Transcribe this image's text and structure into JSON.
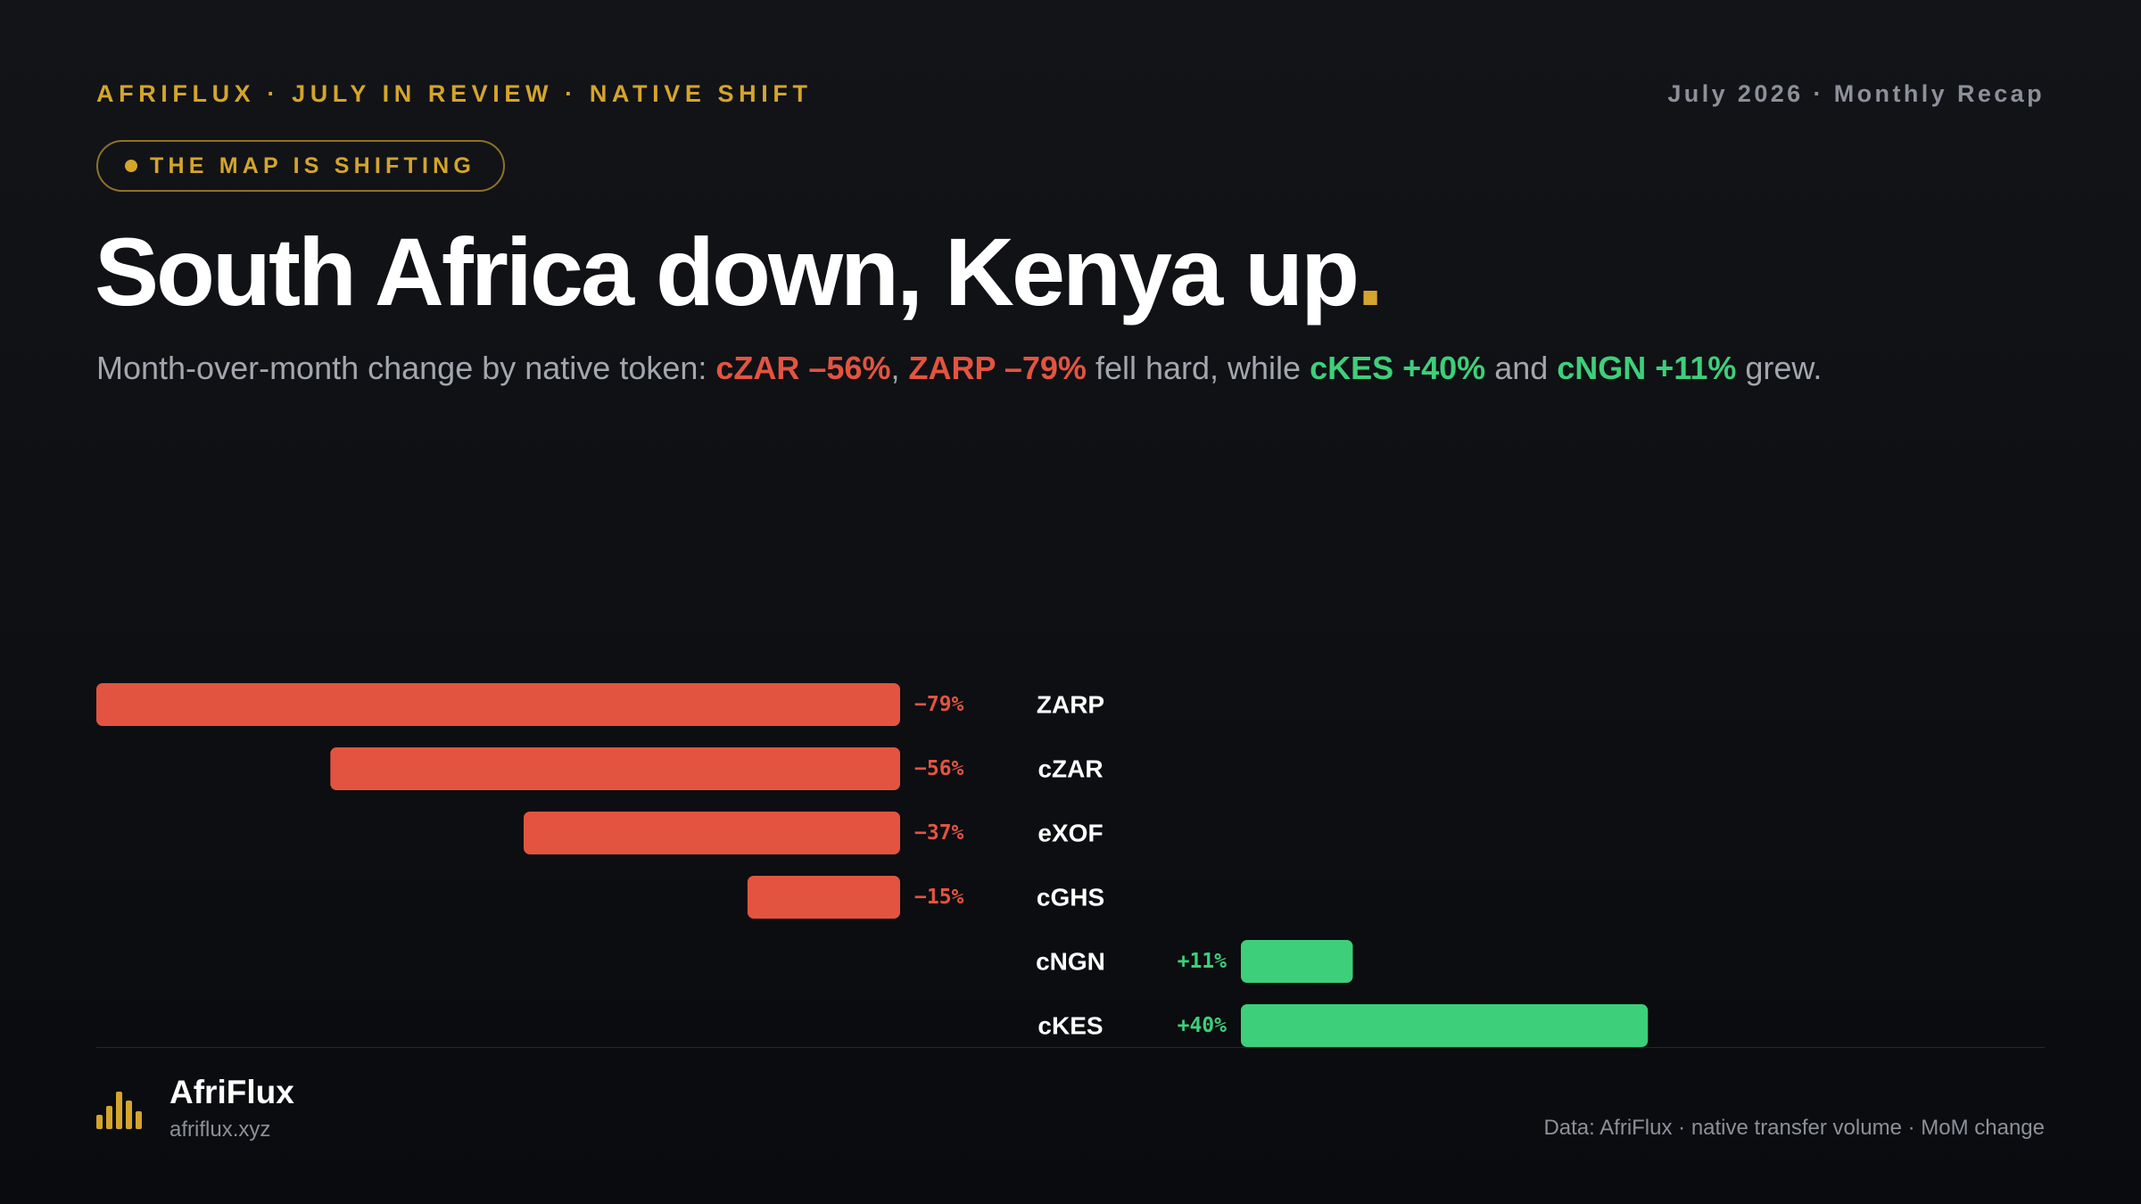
{
  "header": {
    "kicker": "AFRIFLUX · JULY IN REVIEW · NATIVE SHIFT",
    "recap": "July 2026 · Monthly Recap",
    "pill": "THE MAP IS SHIFTING",
    "headline": "South Africa down, Kenya up",
    "headline_dot": ".",
    "subtitle": {
      "lead": "Month-over-month change by native token: ",
      "czar": "cZAR –56%",
      "comma": ", ",
      "zarp": "ZARP –79%",
      "mid": " fell hard, while ",
      "ckes": "cKES +40%",
      "and": " and ",
      "cngn": "cNGN +11%",
      "end": " grew."
    }
  },
  "colors": {
    "accent": "#d4a52c",
    "negative": "#e35440",
    "positive": "#3ecf7a",
    "background": "#0d0e12",
    "muted": "#8d9098"
  },
  "chart_data": {
    "type": "bar",
    "orientation": "horizontal-diverging",
    "categories": [
      "ZARP",
      "cZAR",
      "eXOF",
      "cGHS",
      "cNGN",
      "cKES"
    ],
    "values": [
      -79,
      -56,
      -37,
      -15,
      11,
      40
    ],
    "value_labels": [
      "−79%",
      "−56%",
      "−37%",
      "−15%",
      "+11%",
      "+40%"
    ],
    "unit": "%",
    "title": "",
    "xlabel": "",
    "ylabel": "",
    "xlim": [
      -79,
      44
    ],
    "grid": false,
    "legend": "none"
  },
  "footer": {
    "brand_name": "AfriFlux",
    "brand_url": "afriflux.xyz",
    "logo_icon": "bar-chart-logo-icon",
    "source": "Data: AfriFlux · native transfer volume · MoM change"
  }
}
